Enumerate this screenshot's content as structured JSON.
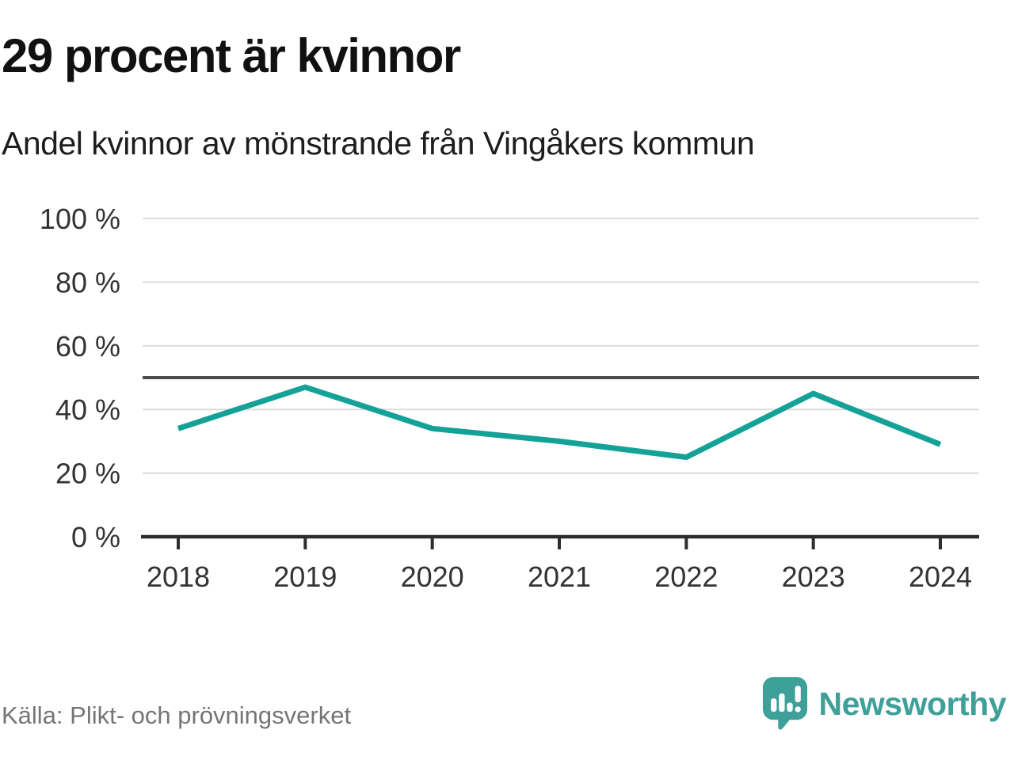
{
  "header": {
    "title": "29 procent är kvinnor",
    "subtitle": "Andel kvinnor av mönstrande från Vingåkers kommun"
  },
  "chart_data": {
    "type": "line",
    "title": "29 procent är kvinnor",
    "subtitle": "Andel kvinnor av mönstrande från Vingåkers kommun",
    "x": [
      "2018",
      "2019",
      "2020",
      "2021",
      "2022",
      "2023",
      "2024"
    ],
    "series": [
      {
        "name": "Andel kvinnor av mönstrande",
        "values": [
          34,
          47,
          34,
          30,
          25,
          45,
          29
        ],
        "color": "#14a197"
      }
    ],
    "unit": "%",
    "ylim": [
      0,
      100
    ],
    "yticks": [
      0,
      20,
      40,
      60,
      80,
      100
    ],
    "ytick_suffix": " %",
    "grid": "horizontal",
    "legend": "none",
    "reference_line": {
      "value": 50
    }
  },
  "footer": {
    "source": "Källa: Plikt- och prövningsverket",
    "brand": "Newsworthy"
  },
  "colors": {
    "background": "#ffffff",
    "title_text": "#111111",
    "subtitle_text": "#1d1d1d",
    "axis_label": "#333333",
    "grid_line": "#dcdcdc",
    "reference_line": "#4d4d4d",
    "axis_line": "#2d2d2d",
    "data_line": "#14a197",
    "source_text": "#757575",
    "brand": "#3f9f99"
  }
}
